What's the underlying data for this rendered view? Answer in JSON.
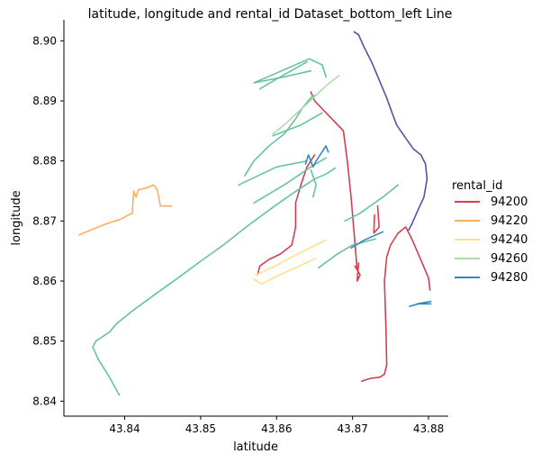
{
  "chart_data": {
    "type": "line",
    "title": "latitude, longitude and rental_id Dataset_bottom_left Line",
    "xlabel": "latitude",
    "ylabel": "longitude",
    "xlim": [
      43.832,
      43.8826
    ],
    "ylim": [
      8.8375,
      8.9035
    ],
    "x_ticks": [
      "43.84",
      "43.85",
      "43.86",
      "43.87",
      "43.88"
    ],
    "y_ticks": [
      "8.84",
      "8.85",
      "8.86",
      "8.87",
      "8.88",
      "8.89",
      "8.90"
    ],
    "grid": false,
    "legend": {
      "title": "rental_id",
      "position": "right"
    },
    "series": [
      {
        "name": "94200",
        "color": "#d53e4f",
        "segments": [
          [
            [
              43.8712,
              8.8433
            ],
            [
              43.8716,
              8.8435
            ],
            [
              43.8724,
              8.8438
            ],
            [
              43.8736,
              8.844
            ],
            [
              43.8742,
              8.8445
            ],
            [
              43.8745,
              8.846
            ],
            [
              43.8744,
              8.852
            ],
            [
              43.8742,
              8.86
            ],
            [
              43.8745,
              8.864
            ],
            [
              43.875,
              8.866
            ],
            [
              43.876,
              8.868
            ],
            [
              43.877,
              8.869
            ],
            [
              43.8778,
              8.867
            ],
            [
              43.879,
              8.8635
            ],
            [
              43.88,
              8.8605
            ],
            [
              43.8802,
              8.8585
            ]
          ],
          [
            [
              43.8703,
              8.8625
            ],
            [
              43.871,
              8.861
            ],
            [
              43.8706,
              8.86
            ],
            [
              43.8708,
              8.863
            ]
          ],
          [
            [
              43.8733,
              8.8725
            ],
            [
              43.8735,
              8.869
            ],
            [
              43.8728,
              8.868
            ],
            [
              43.8729,
              8.871
            ]
          ],
          [
            [
              43.8706,
              8.862
            ],
            [
              43.8702,
              8.868
            ],
            [
              43.8698,
              8.874
            ],
            [
              43.8693,
              8.88
            ],
            [
              43.8688,
              8.885
            ],
            [
              43.865,
              8.89
            ],
            [
              43.8645,
              8.8915
            ]
          ],
          [
            [
              43.8575,
              8.8611
            ],
            [
              43.8578,
              8.8625
            ],
            [
              43.859,
              8.8636
            ],
            [
              43.8605,
              8.8645
            ],
            [
              43.862,
              8.866
            ],
            [
              43.8625,
              8.869
            ],
            [
              43.8625,
              8.873
            ],
            [
              43.8632,
              8.876
            ],
            [
              43.864,
              8.879
            ],
            [
              43.865,
              8.881
            ]
          ]
        ]
      },
      {
        "name": "94220",
        "color": "#fdae61",
        "segments": [
          [
            [
              43.834,
              8.8677
            ],
            [
              43.835,
              8.8682
            ],
            [
              43.8365,
              8.869
            ],
            [
              43.838,
              8.8697
            ],
            [
              43.8395,
              8.8703
            ],
            [
              43.8405,
              8.871
            ],
            [
              43.841,
              8.8713
            ],
            [
              43.8412,
              8.875
            ],
            [
              43.8415,
              8.874
            ],
            [
              43.8418,
              8.8752
            ],
            [
              43.8428,
              8.8755
            ],
            [
              43.8438,
              8.876
            ],
            [
              43.8443,
              8.8752
            ],
            [
              43.8447,
              8.8725
            ],
            [
              43.8462,
              8.8725
            ]
          ]
        ]
      },
      {
        "name": "94240",
        "color": "#fee08b",
        "segments": [
          [
            [
              43.857,
              8.8603
            ],
            [
              43.858,
              8.8595
            ],
            [
              43.86,
              8.8608
            ],
            [
              43.8625,
              8.8622
            ],
            [
              43.8652,
              8.8638
            ]
          ],
          [
            [
              43.8572,
              8.861
            ],
            [
              43.8595,
              8.8623
            ],
            [
              43.862,
              8.864
            ],
            [
              43.8648,
              8.8658
            ],
            [
              43.8665,
              8.8668
            ]
          ]
        ]
      },
      {
        "name": "94260",
        "color": "#66c2a5",
        "segments": [
          [
            [
              43.8393,
              8.841
            ],
            [
              43.838,
              8.844
            ],
            [
              43.8365,
              8.847
            ],
            [
              43.8358,
              8.849
            ],
            [
              43.8362,
              8.85
            ],
            [
              43.838,
              8.8515
            ],
            [
              43.839,
              8.853
            ],
            [
              43.841,
              8.855
            ],
            [
              43.844,
              8.8578
            ],
            [
              43.847,
              8.8605
            ],
            [
              43.85,
              8.8633
            ],
            [
              43.853,
              8.866
            ],
            [
              43.856,
              8.869
            ],
            [
              43.859,
              8.8718
            ],
            [
              43.862,
              8.8745
            ],
            [
              43.865,
              8.877
            ],
            [
              43.8665,
              8.8778
            ],
            [
              43.8677,
              8.8788
            ]
          ],
          [
            [
              43.869,
              8.87
            ],
            [
              43.871,
              8.8713
            ],
            [
              43.874,
              8.874
            ],
            [
              43.876,
              8.876
            ]
          ],
          [
            [
              43.855,
              8.876
            ],
            [
              43.86,
              8.879
            ],
            [
              43.864,
              8.88
            ]
          ],
          [
            [
              43.8645,
              8.8785
            ],
            [
              43.8652,
              8.876
            ],
            [
              43.8648,
              8.874
            ]
          ],
          [
            [
              43.857,
              8.873
            ],
            [
              43.861,
              8.876
            ],
            [
              43.8645,
              8.879
            ],
            [
              43.8665,
              8.8805
            ]
          ],
          [
            [
              43.8558,
              8.8775
            ],
            [
              43.857,
              8.88
            ],
            [
              43.859,
              8.8825
            ],
            [
              43.861,
              8.8845
            ],
            [
              43.8625,
              8.887
            ],
            [
              43.8635,
              8.889
            ],
            [
              43.8645,
              8.8905
            ],
            [
              43.8652,
              8.891
            ]
          ],
          [
            [
              43.866,
              8.888
            ],
            [
              43.8632,
              8.886
            ],
            [
              43.8595,
              8.8842
            ]
          ],
          [
            [
              43.8645,
              8.895
            ],
            [
              43.861,
              8.894
            ],
            [
              43.857,
              8.893
            ],
            [
              43.8643,
              8.897
            ],
            [
              43.866,
              8.896
            ],
            [
              43.8665,
              8.894
            ]
          ],
          [
            [
              43.8578,
              8.892
            ],
            [
              43.8605,
              8.894
            ],
            [
              43.864,
              8.8965
            ]
          ],
          [
            [
              43.8655,
              8.8622
            ],
            [
              43.868,
              8.8645
            ],
            [
              43.87,
              8.866
            ],
            [
              43.873,
              8.867
            ]
          ]
        ]
      },
      {
        "name": "94260",
        "color": "#abdda4",
        "segments": [
          [
            [
              43.8595,
              8.8845
            ],
            [
              43.861,
              8.886
            ],
            [
              43.864,
              8.8895
            ],
            [
              43.8665,
              8.8925
            ],
            [
              43.8682,
              8.8942
            ]
          ]
        ]
      },
      {
        "name": "94280",
        "color": "#3288bd",
        "segments": [
          [
            [
              43.8638,
              8.8795
            ],
            [
              43.8642,
              8.881
            ],
            [
              43.8648,
              8.879
            ],
            [
              43.8652,
              8.88
            ],
            [
              43.8665,
              8.8825
            ],
            [
              43.8668,
              8.8815
            ]
          ],
          [
            [
              43.8698,
              8.8655
            ],
            [
              43.8715,
              8.8668
            ],
            [
              43.874,
              8.8682
            ]
          ],
          [
            [
              43.8775,
              8.8558
            ],
            [
              43.879,
              8.8563
            ],
            [
              43.8803,
              8.8566
            ],
            [
              43.8785,
              8.8562
            ],
            [
              43.8803,
              8.8562
            ]
          ]
        ]
      },
      {
        "name": "94280",
        "color": "#5e4fa2",
        "segments": [
          [
            [
              43.8702,
              8.9015
            ],
            [
              43.8708,
              8.901
            ],
            [
              43.8715,
              8.899
            ],
            [
              43.8725,
              8.8965
            ],
            [
              43.8735,
              8.8935
            ],
            [
              43.8745,
              8.8905
            ],
            [
              43.8752,
              8.888
            ],
            [
              43.8758,
              8.886
            ],
            [
              43.877,
              8.8838
            ],
            [
              43.878,
              8.882
            ],
            [
              43.879,
              8.881
            ],
            [
              43.8796,
              8.8795
            ],
            [
              43.8798,
              8.877
            ],
            [
              43.8794,
              8.874
            ],
            [
              43.8785,
              8.8715
            ],
            [
              43.8778,
              8.8695
            ],
            [
              43.8774,
              8.8685
            ]
          ]
        ]
      }
    ],
    "legend_entries": [
      {
        "label": "94200",
        "color": "#d53e4f"
      },
      {
        "label": "94220",
        "color": "#fdae61"
      },
      {
        "label": "94240",
        "color": "#fee08b"
      },
      {
        "label": "94260",
        "color": "#abdda4"
      },
      {
        "label": "94280",
        "color": "#3288bd"
      }
    ]
  }
}
